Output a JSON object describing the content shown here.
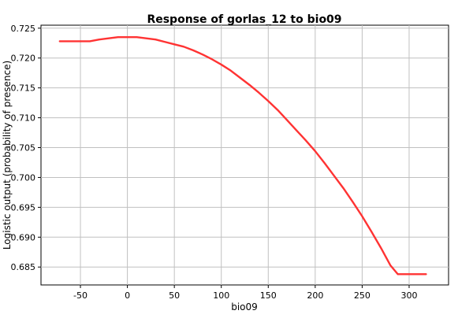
{
  "chart_data": {
    "type": "line",
    "title": "Response of gorlas_12 to bio09",
    "xlabel": "bio09",
    "ylabel": "Logistic output (probability of presence)",
    "xlim": [
      -92,
      342
    ],
    "ylim": [
      0.682,
      0.7255
    ],
    "x_ticks": [
      -50,
      0,
      50,
      100,
      150,
      200,
      250,
      300
    ],
    "y_ticks": [
      0.685,
      0.69,
      0.695,
      0.7,
      0.705,
      0.71,
      0.715,
      0.72,
      0.725
    ],
    "grid": true,
    "series": [
      {
        "color": "#ff3333",
        "x": [
          -72,
          -40,
          -30,
          -20,
          -10,
          0,
          10,
          20,
          30,
          40,
          50,
          60,
          70,
          80,
          90,
          100,
          110,
          120,
          130,
          140,
          150,
          160,
          170,
          180,
          190,
          200,
          210,
          220,
          230,
          240,
          250,
          260,
          270,
          280,
          288,
          318
        ],
        "y": [
          0.7228,
          0.7228,
          0.7231,
          0.7233,
          0.7235,
          0.7235,
          0.7235,
          0.7233,
          0.7231,
          0.7227,
          0.7223,
          0.7219,
          0.7213,
          0.7206,
          0.7198,
          0.7189,
          0.7179,
          0.7167,
          0.7155,
          0.7142,
          0.7128,
          0.7113,
          0.7096,
          0.7079,
          0.7062,
          0.7044,
          0.7024,
          0.7003,
          0.6982,
          0.6959,
          0.6935,
          0.6909,
          0.6882,
          0.6853,
          0.6838,
          0.6838
        ]
      }
    ]
  }
}
